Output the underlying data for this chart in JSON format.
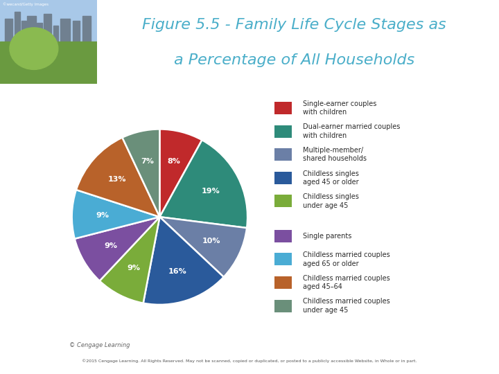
{
  "title_line1": "Figure 5.5 - Family Life Cycle Stages as",
  "title_line2": "a Percentage of All Households",
  "title_color": "#4aaec9",
  "title_fontsize": 16,
  "background_color": "#ffffff",
  "chart_bg_color": "#f7f2d8",
  "labels": [
    "Single-earner couples\nwith children",
    "Dual-earner married couples\nwith children",
    "Multiple-member/\nshared households",
    "Childless singles\naged 45 or older",
    "Childless singles\nunder age 45",
    "Single parents",
    "Childless married couples\naged 65 or older",
    "Childless married couples\naged 45–64",
    "Childless married couples\nunder age 45"
  ],
  "values": [
    8,
    19,
    10,
    16,
    9,
    9,
    9,
    13,
    7
  ],
  "colors": [
    "#c0292b",
    "#2e8b7a",
    "#6b7fa6",
    "#2a5a9b",
    "#7aac3a",
    "#7b4fa0",
    "#4aacd4",
    "#b8622a",
    "#6a8f7a"
  ],
  "pct_labels": [
    "8%",
    "19%",
    "10%",
    "16%",
    "9%",
    "9%",
    "9%",
    "13%",
    "7%"
  ],
  "copyright_text": "© Cengage Learning",
  "footer_text": "©2015 Cengage Learning. All Rights Reserved. May not be scanned, copied or duplicated, or posted to a publicly accessible Website, in Whole or in part.",
  "img_credit": "©wecand/Getty Images",
  "startangle": 90,
  "img_colors_top": "#6a9fd8",
  "img_colors_mid": "#7ab842",
  "img_colors_bot": "#5a8a3a"
}
